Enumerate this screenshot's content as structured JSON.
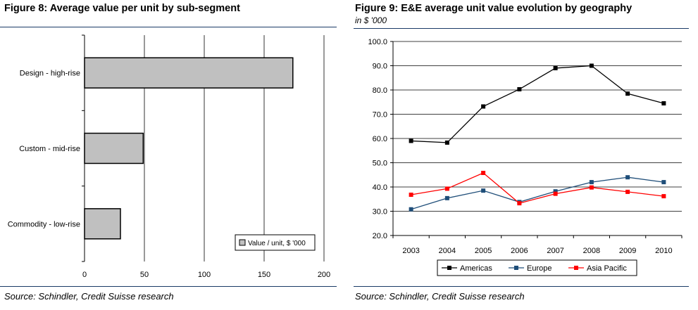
{
  "figures": [
    {
      "title": "Figure 8: Average value per unit by sub-segment",
      "source": "Source: Schindler, Credit Suisse research"
    },
    {
      "title": "Figure 9: E&E average unit value evolution by geography",
      "subtitle": "in $ '000",
      "source": "Source: Schindler, Credit Suisse research"
    }
  ],
  "chart_data": [
    {
      "type": "bar",
      "orientation": "horizontal",
      "title": "Figure 8: Average value per unit by sub-segment",
      "categories": [
        "Design - high-rise",
        "Custom - mid-rise",
        "Commodity - low-rise"
      ],
      "series": [
        {
          "name": "Value / unit, $ '000",
          "values": [
            174,
            49,
            30
          ],
          "color": "#c0c0c0"
        }
      ],
      "xlim": [
        0,
        200
      ],
      "xticks": [
        "0",
        "50",
        "100",
        "150",
        "200"
      ],
      "grid": "vertical",
      "legend": "bottom-right"
    },
    {
      "type": "line",
      "title": "Figure 9: E&E average unit value evolution by geography",
      "subtitle": "in $ '000",
      "x": [
        "2003",
        "2004",
        "2005",
        "2006",
        "2007",
        "2008",
        "2009",
        "2010"
      ],
      "series": [
        {
          "name": "Americas",
          "color": "#000000",
          "values": [
            59.0,
            58.3,
            73.2,
            80.3,
            89.0,
            90.0,
            78.5,
            74.5
          ]
        },
        {
          "name": "Europe",
          "color": "#1f4e79",
          "values": [
            30.8,
            35.4,
            38.5,
            33.8,
            38.2,
            42.0,
            44.0,
            42.0
          ]
        },
        {
          "name": "Asia Pacific",
          "color": "#ff0000",
          "values": [
            36.8,
            39.3,
            45.8,
            33.3,
            37.2,
            39.8,
            38.0,
            36.2
          ]
        }
      ],
      "ylim": [
        20,
        100
      ],
      "yticks": [
        "20.0",
        "30.0",
        "40.0",
        "50.0",
        "60.0",
        "70.0",
        "80.0",
        "90.0",
        "100.0"
      ],
      "grid": "horizontal",
      "legend": "bottom-center"
    }
  ]
}
